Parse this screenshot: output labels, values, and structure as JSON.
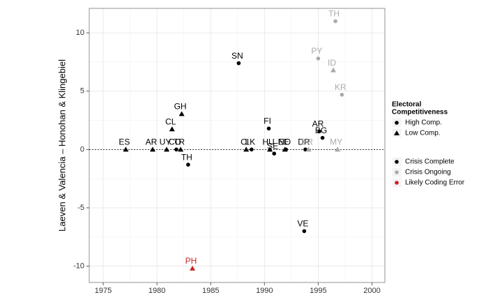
{
  "chart_data": {
    "type": "scatter",
    "y_label": "Laeven & Valencia – Honohan & Klingebiel",
    "xlim": [
      1973.7,
      2001.2
    ],
    "ylim": [
      -11.4,
      12.1
    ],
    "xticks": [
      1975,
      1980,
      1985,
      1990,
      1995,
      2000
    ],
    "yticks": [
      -10,
      -5,
      0,
      5,
      10
    ],
    "grid": true,
    "hline": 0,
    "shape_legend": {
      "title": [
        "Electoral",
        "Competitiveness"
      ],
      "items": [
        {
          "label": "High Comp.",
          "shape": "circle"
        },
        {
          "label": "Low Comp.",
          "shape": "triangle"
        }
      ]
    },
    "color_legend": {
      "items": [
        {
          "label": "Crisis Complete",
          "color": "#000000"
        },
        {
          "label": "Crisis Ongoing",
          "color": "#aaaaaa"
        },
        {
          "label": "Likely Coding Error",
          "color": "#cc2222"
        }
      ]
    },
    "points": [
      {
        "label": "ES",
        "x": 1977.1,
        "y": 0,
        "shape": 1,
        "color": 0
      },
      {
        "label": "AR",
        "x": 1979.6,
        "y": 0,
        "shape": 1,
        "color": 0
      },
      {
        "label": "UY",
        "x": 1980.9,
        "y": 0,
        "shape": 1,
        "color": 0
      },
      {
        "label": "CO",
        "x": 1981.8,
        "y": 0,
        "shape": 0,
        "color": 0
      },
      {
        "label": "TR",
        "x": 1982.2,
        "y": 0,
        "shape": 1,
        "color": 0
      },
      {
        "label": "CL",
        "x": 1981.4,
        "y": 1.74,
        "shape": 1,
        "color": 0
      },
      {
        "label": "GH",
        "x": 1982.3,
        "y": 3.05,
        "shape": 1,
        "color": 0
      },
      {
        "label": "TH",
        "x": 1982.9,
        "y": -1.3,
        "shape": 0,
        "color": 0
      },
      {
        "label": "PH",
        "x": 1983.3,
        "y": -10.2,
        "shape": 1,
        "color": 2
      },
      {
        "label": "SN",
        "x": 1987.6,
        "y": 7.4,
        "shape": 0,
        "color": 0
      },
      {
        "label": "CI",
        "x": 1988.3,
        "y": 0,
        "shape": 1,
        "color": 0
      },
      {
        "label": "LK",
        "x": 1988.8,
        "y": 0,
        "shape": 0,
        "color": 0
      },
      {
        "label": "FI",
        "x": 1990.4,
        "y": 1.8,
        "shape": 0,
        "color": 0
      },
      {
        "label": "HU",
        "x": 1990.5,
        "y": 0,
        "shape": 1,
        "color": 0
      },
      {
        "label": "SE",
        "x": 1990.9,
        "y": -0.35,
        "shape": 0,
        "color": 0
      },
      {
        "label": "EE",
        "x": 1991.9,
        "y": 0,
        "shape": 1,
        "color": 0
      },
      {
        "label": "NO",
        "x": 1992.0,
        "y": 0,
        "shape": 0,
        "color": 0
      },
      {
        "label": "DR",
        "x": 1993.8,
        "y": 0,
        "shape": 0,
        "color": 0
      },
      {
        "label": "BR",
        "x": 1994.1,
        "y": 0,
        "shape": 1,
        "color": 1
      },
      {
        "label": "VE",
        "x": 1993.7,
        "y": -7.0,
        "shape": 0,
        "color": 0
      },
      {
        "label": "AR",
        "x": 1995.1,
        "y": 1.55,
        "shape": 0,
        "color": 0
      },
      {
        "label": "BG",
        "x": 1995.4,
        "y": 1.0,
        "shape": 0,
        "color": 0
      },
      {
        "label": "MY",
        "x": 1996.8,
        "y": 0,
        "shape": 1,
        "color": 1
      },
      {
        "label": "TH",
        "x": 1996.6,
        "y": 11.0,
        "shape": 0,
        "color": 1
      },
      {
        "label": "PY",
        "x": 1995.0,
        "y": 7.8,
        "shape": 0,
        "color": 1
      },
      {
        "label": "ID",
        "x": 1996.4,
        "y": 6.8,
        "shape": 1,
        "color": 1
      },
      {
        "label": "KR",
        "x": 1997.2,
        "y": 4.7,
        "shape": 0,
        "color": 1
      }
    ]
  }
}
